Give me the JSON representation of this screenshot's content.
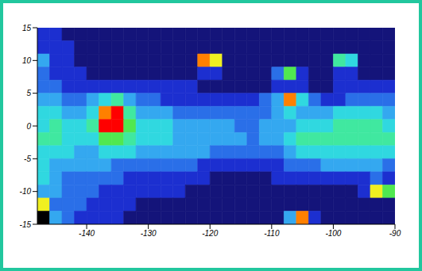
{
  "chart_data": {
    "type": "heatmap",
    "x": [
      -147,
      -145,
      -143,
      -141,
      -139,
      -137,
      -135,
      -133,
      -131,
      -129,
      -127,
      -125,
      -123,
      -121,
      -119,
      -117,
      -115,
      -113,
      -111,
      -109,
      -107,
      -105,
      -103,
      -101,
      -99,
      -97,
      -95,
      -93,
      -91
    ],
    "y": [
      14,
      12,
      10,
      8,
      6,
      4,
      2,
      0,
      -2,
      -4,
      -6,
      -8,
      -10,
      -12,
      -14
    ],
    "cells": [
      [
        2,
        2,
        1,
        1,
        1,
        1,
        1,
        1,
        1,
        1,
        1,
        1,
        1,
        1,
        1,
        1,
        1,
        1,
        1,
        1,
        1,
        1,
        1,
        1,
        1,
        1,
        1,
        1,
        1
      ],
      [
        2,
        2,
        2,
        1,
        1,
        1,
        1,
        1,
        1,
        1,
        1,
        1,
        1,
        1,
        1,
        1,
        1,
        1,
        1,
        1,
        1,
        1,
        1,
        1,
        1,
        1,
        1,
        1,
        1
      ],
      [
        4,
        2,
        2,
        1,
        1,
        1,
        1,
        1,
        1,
        1,
        1,
        1,
        1,
        9,
        8,
        1,
        1,
        1,
        1,
        1,
        1,
        1,
        1,
        1,
        6,
        5,
        1,
        1,
        1
      ],
      [
        3,
        2,
        2,
        2,
        1,
        1,
        1,
        1,
        1,
        1,
        1,
        1,
        1,
        2,
        2,
        1,
        1,
        1,
        1,
        3,
        7,
        2,
        1,
        1,
        2,
        2,
        1,
        1,
        1
      ],
      [
        3,
        3,
        2,
        2,
        2,
        2,
        2,
        2,
        2,
        2,
        2,
        2,
        2,
        1,
        1,
        1,
        1,
        1,
        1,
        2,
        2,
        2,
        1,
        1,
        2,
        2,
        2,
        2,
        2
      ],
      [
        4,
        4,
        3,
        3,
        4,
        5,
        6,
        4,
        3,
        3,
        2,
        2,
        2,
        2,
        2,
        2,
        2,
        2,
        3,
        4,
        9,
        5,
        3,
        2,
        2,
        3,
        3,
        3,
        3
      ],
      [
        5,
        5,
        4,
        4,
        5,
        9,
        10,
        6,
        4,
        4,
        4,
        3,
        3,
        3,
        3,
        3,
        3,
        3,
        3,
        4,
        5,
        4,
        4,
        4,
        5,
        5,
        5,
        5,
        4
      ],
      [
        5,
        6,
        5,
        5,
        6,
        10,
        10,
        7,
        5,
        5,
        5,
        4,
        4,
        4,
        4,
        4,
        3,
        3,
        4,
        4,
        4,
        5,
        5,
        5,
        6,
        6,
        6,
        6,
        5
      ],
      [
        6,
        6,
        5,
        5,
        5,
        7,
        7,
        6,
        5,
        5,
        5,
        4,
        4,
        4,
        4,
        4,
        4,
        3,
        4,
        4,
        5,
        6,
        6,
        6,
        6,
        6,
        6,
        6,
        6
      ],
      [
        5,
        5,
        5,
        4,
        4,
        5,
        5,
        5,
        4,
        4,
        4,
        4,
        4,
        4,
        3,
        3,
        3,
        3,
        3,
        3,
        4,
        5,
        5,
        5,
        5,
        5,
        5,
        5,
        5
      ],
      [
        5,
        4,
        4,
        4,
        4,
        4,
        3,
        3,
        3,
        3,
        3,
        3,
        3,
        2,
        2,
        2,
        2,
        2,
        2,
        2,
        3,
        3,
        3,
        4,
        4,
        4,
        4,
        4,
        3
      ],
      [
        5,
        4,
        3,
        3,
        3,
        3,
        3,
        2,
        2,
        2,
        2,
        2,
        2,
        2,
        1,
        1,
        1,
        1,
        1,
        2,
        2,
        2,
        2,
        2,
        2,
        2,
        2,
        3,
        2
      ],
      [
        4,
        4,
        3,
        3,
        3,
        2,
        2,
        2,
        2,
        2,
        2,
        2,
        1,
        1,
        1,
        1,
        1,
        1,
        1,
        1,
        1,
        1,
        1,
        1,
        1,
        1,
        2,
        8,
        7
      ],
      [
        8,
        3,
        3,
        3,
        2,
        2,
        2,
        2,
        1,
        1,
        1,
        1,
        1,
        1,
        1,
        1,
        1,
        1,
        1,
        1,
        1,
        1,
        1,
        1,
        1,
        1,
        1,
        1,
        1
      ],
      [
        0,
        4,
        3,
        2,
        2,
        2,
        2,
        1,
        1,
        1,
        1,
        1,
        1,
        1,
        1,
        1,
        1,
        1,
        1,
        1,
        4,
        9,
        2,
        1,
        1,
        1,
        1,
        1,
        1
      ]
    ],
    "zlim": [
      0,
      10
    ],
    "xlim": [
      -148,
      -90
    ],
    "xticks": [
      -140,
      -130,
      -120,
      -110,
      -100,
      -90
    ],
    "ylim": [
      -15,
      15
    ],
    "yticks": [
      -15,
      -10,
      -5,
      0,
      5,
      10,
      15
    ]
  }
}
